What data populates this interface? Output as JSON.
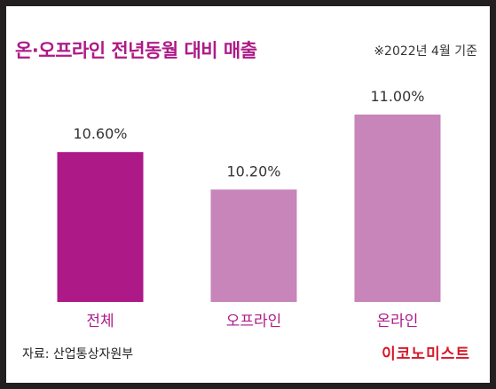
{
  "title": "온·오프라인 전년동월 대비 매출",
  "note": "※2022년 4월 기준",
  "source": "자료:  산업통상자원부",
  "brand": "이코노미스트",
  "colors": {
    "highlight_bar": "#ad1a87",
    "bar": "#c785b9",
    "title": "#ad1a87",
    "brand": "#d7182a",
    "frame": "#231f20"
  },
  "chart_data": {
    "type": "bar",
    "title": "온·오프라인 전년동월 대비 매출",
    "categories": [
      "전체",
      "오프라인",
      "온라인"
    ],
    "values": [
      10.6,
      10.2,
      11.0
    ],
    "value_labels": [
      "10.60%",
      "10.20%",
      "11.00%"
    ],
    "unit": "%",
    "grid": false,
    "legend": "none"
  }
}
